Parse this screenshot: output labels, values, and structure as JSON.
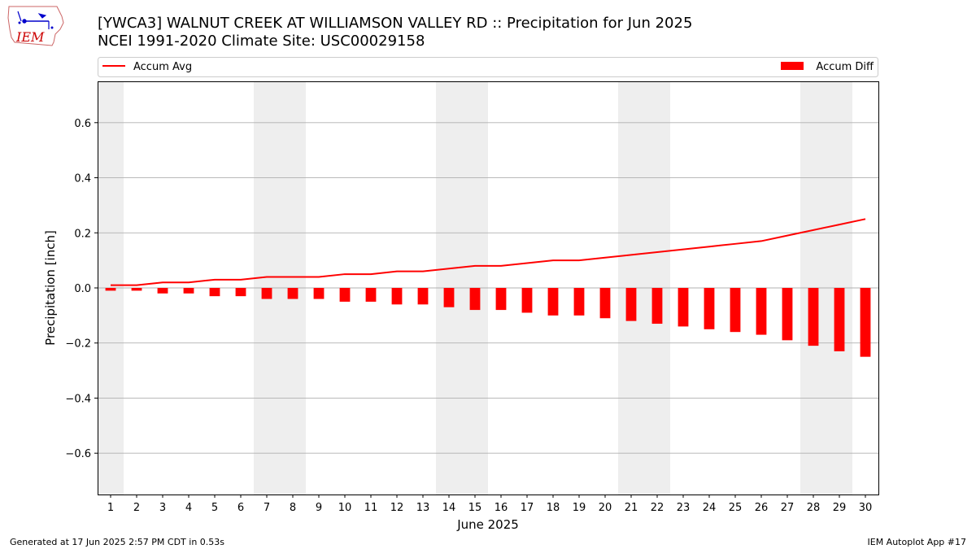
{
  "title": {
    "line1": "[YWCA3] WALNUT CREEK AT WILLIAMSON VALLEY RD :: Precipitation for Jun 2025",
    "line2": "NCEI 1991-2020 Climate Site: USC00029158"
  },
  "logo": {
    "text": "IEM",
    "color": "#cc0000",
    "icon_color": "#0000cc"
  },
  "footer": {
    "left": "Generated at 17 Jun 2025 2:57 PM CDT in 0.53s",
    "right": "IEM Autoplot App #17"
  },
  "colors": {
    "series": "#ff0000",
    "weekend_shade": "#eeeeee",
    "grid": "#b0b0b0"
  },
  "chart_data": {
    "type": "bar",
    "xlabel": "June 2025",
    "ylabel": "Precipitation [inch]",
    "ylim": [
      -0.75,
      0.75
    ],
    "yticks": [
      -0.6,
      -0.4,
      -0.2,
      0.0,
      0.2,
      0.4,
      0.6
    ],
    "ytick_labels": [
      "−0.6",
      "−0.4",
      "−0.2",
      "0.0",
      "0.2",
      "0.4",
      "0.6"
    ],
    "xlim": [
      0.5,
      30.5
    ],
    "x": [
      1,
      2,
      3,
      4,
      5,
      6,
      7,
      8,
      9,
      10,
      11,
      12,
      13,
      14,
      15,
      16,
      17,
      18,
      19,
      20,
      21,
      22,
      23,
      24,
      25,
      26,
      27,
      28,
      29,
      30
    ],
    "grid": "horizontal",
    "legend_placement": "top, above plot",
    "shaded_days": [
      1,
      7,
      8,
      14,
      15,
      21,
      22,
      28,
      29
    ],
    "series": [
      {
        "name": "Accum Avg",
        "kind": "line",
        "values": [
          0.01,
          0.01,
          0.02,
          0.02,
          0.03,
          0.03,
          0.04,
          0.04,
          0.04,
          0.05,
          0.05,
          0.06,
          0.06,
          0.07,
          0.08,
          0.08,
          0.09,
          0.1,
          0.1,
          0.11,
          0.12,
          0.13,
          0.14,
          0.15,
          0.16,
          0.17,
          0.19,
          0.21,
          0.23,
          0.25
        ]
      },
      {
        "name": "Accum Diff",
        "kind": "bar",
        "values": [
          -0.01,
          -0.01,
          -0.02,
          -0.02,
          -0.03,
          -0.03,
          -0.04,
          -0.04,
          -0.04,
          -0.05,
          -0.05,
          -0.06,
          -0.06,
          -0.07,
          -0.08,
          -0.08,
          -0.09,
          -0.1,
          -0.1,
          -0.11,
          -0.12,
          -0.13,
          -0.14,
          -0.15,
          -0.16,
          -0.17,
          -0.19,
          -0.21,
          -0.23,
          -0.25
        ]
      }
    ]
  }
}
